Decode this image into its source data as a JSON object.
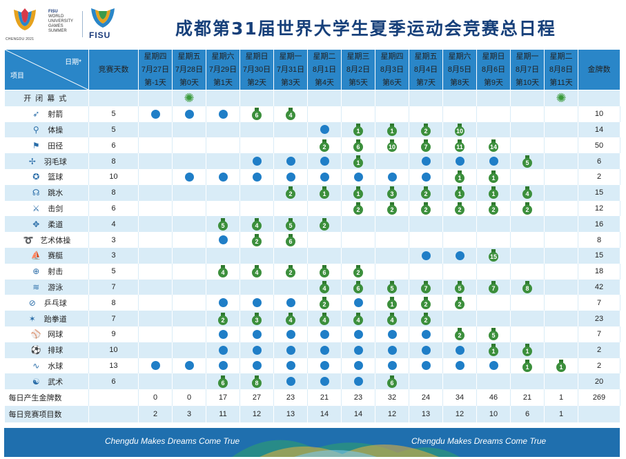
{
  "header": {
    "title": "成都第31届世界大学生夏季运动会竞赛总日程",
    "logo_left_text": "CHENGDU 2021",
    "logo_fisu_lines": [
      "FISU",
      "WORLD",
      "UNIVERSITY",
      "GAMES",
      "SUMMER"
    ],
    "logo_right_text": "FISU"
  },
  "table_header": {
    "corner_date": "日期*",
    "corner_item": "项目",
    "days_col": "竞赛天数",
    "medals_col": "金牌数",
    "dates": [
      {
        "weekday": "星期四",
        "date": "7月27日",
        "day": "第-1天"
      },
      {
        "weekday": "星期五",
        "date": "7月28日",
        "day": "第0天"
      },
      {
        "weekday": "星期六",
        "date": "7月29日",
        "day": "第1天"
      },
      {
        "weekday": "星期日",
        "date": "7月30日",
        "day": "第2天"
      },
      {
        "weekday": "星期一",
        "date": "7月31日",
        "day": "第3天"
      },
      {
        "weekday": "星期二",
        "date": "8月1日",
        "day": "第4天"
      },
      {
        "weekday": "星期三",
        "date": "8月2日",
        "day": "第5天"
      },
      {
        "weekday": "星期四",
        "date": "8月3日",
        "day": "第6天"
      },
      {
        "weekday": "星期五",
        "date": "8月4日",
        "day": "第7天"
      },
      {
        "weekday": "星期六",
        "date": "8月5日",
        "day": "第8天"
      },
      {
        "weekday": "星期日",
        "date": "8月6日",
        "day": "第9天"
      },
      {
        "weekday": "星期一",
        "date": "8月7日",
        "day": "第10天"
      },
      {
        "weekday": "星期二",
        "date": "8月8日",
        "day": "第11天"
      }
    ]
  },
  "ceremony": {
    "name": "开闭幕式",
    "cells": [
      "",
      "F",
      "",
      "",
      "",
      "",
      "",
      "",
      "",
      "",
      "",
      "",
      "F"
    ]
  },
  "sports": [
    {
      "name": "射箭",
      "icon": "archery-icon",
      "glyph": "➶",
      "days": "5",
      "gold": "10",
      "cells": [
        "D",
        "D",
        "D",
        "6",
        "4",
        "",
        "",
        "",
        "",
        "",
        "",
        "",
        ""
      ]
    },
    {
      "name": "体操",
      "icon": "gymnastics-icon",
      "glyph": "⚲",
      "days": "5",
      "gold": "14",
      "cells": [
        "",
        "",
        "",
        "",
        "",
        "D",
        "1",
        "1",
        "2",
        "10",
        "",
        "",
        ""
      ]
    },
    {
      "name": "田径",
      "icon": "athletics-icon",
      "glyph": "⚑",
      "days": "6",
      "gold": "50",
      "cells": [
        "",
        "",
        "",
        "",
        "",
        "2",
        "6",
        "10",
        "7",
        "11",
        "14",
        "",
        ""
      ]
    },
    {
      "name": "羽毛球",
      "icon": "badminton-icon",
      "glyph": "✢",
      "days": "8",
      "gold": "6",
      "cells": [
        "",
        "",
        "",
        "D",
        "D",
        "D",
        "1",
        "",
        "D",
        "D",
        "D",
        "5",
        ""
      ]
    },
    {
      "name": "篮球",
      "icon": "basketball-icon",
      "glyph": "✪",
      "days": "10",
      "gold": "2",
      "cells": [
        "",
        "D",
        "D",
        "D",
        "D",
        "D",
        "D",
        "D",
        "D",
        "1",
        "1",
        "",
        ""
      ]
    },
    {
      "name": "跳水",
      "icon": "diving-icon",
      "glyph": "☊",
      "days": "8",
      "gold": "15",
      "cells": [
        "",
        "",
        "",
        "",
        "2",
        "1",
        "1",
        "3",
        "2",
        "1",
        "1",
        "4",
        ""
      ]
    },
    {
      "name": "击剑",
      "icon": "fencing-icon",
      "glyph": "⚔",
      "days": "6",
      "gold": "12",
      "cells": [
        "",
        "",
        "",
        "",
        "",
        "",
        "2",
        "2",
        "2",
        "2",
        "2",
        "2",
        ""
      ]
    },
    {
      "name": "柔道",
      "icon": "judo-icon",
      "glyph": "✥",
      "days": "4",
      "gold": "16",
      "cells": [
        "",
        "",
        "5",
        "4",
        "5",
        "2",
        "",
        "",
        "",
        "",
        "",
        "",
        ""
      ]
    },
    {
      "name": "艺术体操",
      "icon": "rhythmic-gymnastics-icon",
      "glyph": "➰",
      "days": "3",
      "gold": "8",
      "cells": [
        "",
        "",
        "D",
        "2",
        "6",
        "",
        "",
        "",
        "",
        "",
        "",
        "",
        ""
      ]
    },
    {
      "name": "赛艇",
      "icon": "rowing-icon",
      "glyph": "⛵",
      "days": "3",
      "gold": "15",
      "cells": [
        "",
        "",
        "",
        "",
        "",
        "",
        "",
        "",
        "D",
        "D",
        "15",
        "",
        ""
      ]
    },
    {
      "name": "射击",
      "icon": "shooting-icon",
      "glyph": "⊕",
      "days": "5",
      "gold": "18",
      "cells": [
        "",
        "",
        "4",
        "4",
        "2",
        "6",
        "2",
        "",
        "",
        "",
        "",
        "",
        ""
      ]
    },
    {
      "name": "游泳",
      "icon": "swimming-icon",
      "glyph": "≋",
      "days": "7",
      "gold": "42",
      "cells": [
        "",
        "",
        "",
        "",
        "",
        "4",
        "6",
        "5",
        "7",
        "5",
        "7",
        "8",
        ""
      ]
    },
    {
      "name": "乒乓球",
      "icon": "table-tennis-icon",
      "glyph": "⊘",
      "days": "8",
      "gold": "7",
      "cells": [
        "",
        "",
        "D",
        "D",
        "D",
        "2",
        "D",
        "1",
        "2",
        "2",
        "",
        "",
        ""
      ]
    },
    {
      "name": "跆拳道",
      "icon": "taekwondo-icon",
      "glyph": "✶",
      "days": "7",
      "gold": "23",
      "cells": [
        "",
        "",
        "2",
        "3",
        "4",
        "4",
        "4",
        "4",
        "2",
        "",
        "",
        "",
        ""
      ]
    },
    {
      "name": "网球",
      "icon": "tennis-icon",
      "glyph": "⚾",
      "days": "9",
      "gold": "7",
      "cells": [
        "",
        "",
        "D",
        "D",
        "D",
        "D",
        "D",
        "D",
        "D",
        "2",
        "5",
        "",
        ""
      ]
    },
    {
      "name": "排球",
      "icon": "volleyball-icon",
      "glyph": "⚽",
      "days": "10",
      "gold": "2",
      "cells": [
        "",
        "",
        "D",
        "D",
        "D",
        "D",
        "D",
        "D",
        "D",
        "D",
        "1",
        "1",
        ""
      ]
    },
    {
      "name": "水球",
      "icon": "water-polo-icon",
      "glyph": "∿",
      "days": "13",
      "gold": "2",
      "cells": [
        "D",
        "D",
        "D",
        "D",
        "D",
        "D",
        "D",
        "D",
        "D",
        "D",
        "D",
        "1",
        "1"
      ]
    },
    {
      "name": "武术",
      "icon": "wushu-icon",
      "glyph": "☯",
      "days": "6",
      "gold": "20",
      "cells": [
        "",
        "",
        "6",
        "8",
        "D",
        "D",
        "D",
        "6",
        "",
        "",
        "",
        "",
        ""
      ]
    }
  ],
  "summary": [
    {
      "label": "每日产生金牌数",
      "days": "",
      "values": [
        "0",
        "0",
        "17",
        "27",
        "23",
        "21",
        "23",
        "32",
        "24",
        "34",
        "46",
        "21",
        "1"
      ],
      "total": "269"
    },
    {
      "label": "每日竞赛项目数",
      "days": "",
      "values": [
        "2",
        "3",
        "11",
        "12",
        "13",
        "14",
        "14",
        "12",
        "13",
        "12",
        "10",
        "6",
        "1"
      ],
      "total": ""
    }
  ],
  "footer": {
    "slogan_left": "Chengdu Makes Dreams Come True",
    "slogan_right": "Chengdu Makes Dreams Come True"
  },
  "colors": {
    "header_blue": "#2a86c8",
    "title_blue": "#17407a",
    "dot_blue": "#1f7ec7",
    "medal_green": "#3c8f3c",
    "row_stripe": "#d9ecf7",
    "footer_blue": "#1f6fae"
  }
}
